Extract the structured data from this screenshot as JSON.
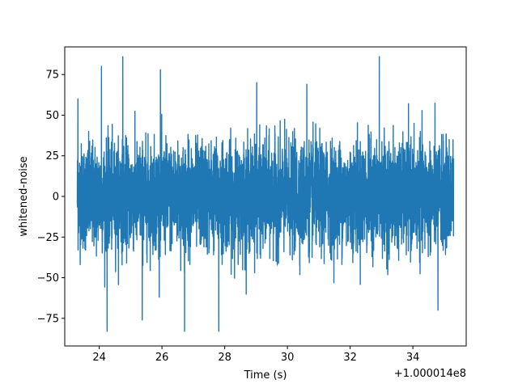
{
  "chart_data": {
    "type": "line",
    "title": "",
    "xlabel": "Time (s)",
    "ylabel": "whitened-noise",
    "x_offset_label": "+1.000014e8",
    "xlim": [
      22.9,
      35.7
    ],
    "ylim": [
      -92,
      92
    ],
    "x_start": 23.3,
    "x_end": 35.3,
    "x_ticks": [
      24,
      26,
      28,
      30,
      32,
      34
    ],
    "y_ticks": [
      -75,
      -50,
      -25,
      0,
      25,
      50,
      75
    ],
    "x_tick_labels": [
      "24",
      "26",
      "28",
      "30",
      "32",
      "34"
    ],
    "y_tick_labels": [
      "−75",
      "−50",
      "−25",
      "0",
      "25",
      "50",
      "75"
    ],
    "grid": false,
    "legend": "none",
    "series": [
      {
        "color": "#1f77b4",
        "kind": "whitened gaussian noise",
        "std": 16,
        "peaks": [
          {
            "x": 24.75,
            "y": 86
          },
          {
            "x": 32.93,
            "y": 86
          },
          {
            "x": 24.07,
            "y": 80
          },
          {
            "x": 25.95,
            "y": 78
          },
          {
            "x": 24.25,
            "y": -83
          },
          {
            "x": 26.72,
            "y": -83
          },
          {
            "x": 27.81,
            "y": -83
          },
          {
            "x": 25.37,
            "y": -76
          },
          {
            "x": 34.8,
            "y": -70
          },
          {
            "x": 29.02,
            "y": 70
          },
          {
            "x": 30.62,
            "y": 69
          },
          {
            "x": 23.32,
            "y": 60
          }
        ]
      }
    ]
  }
}
